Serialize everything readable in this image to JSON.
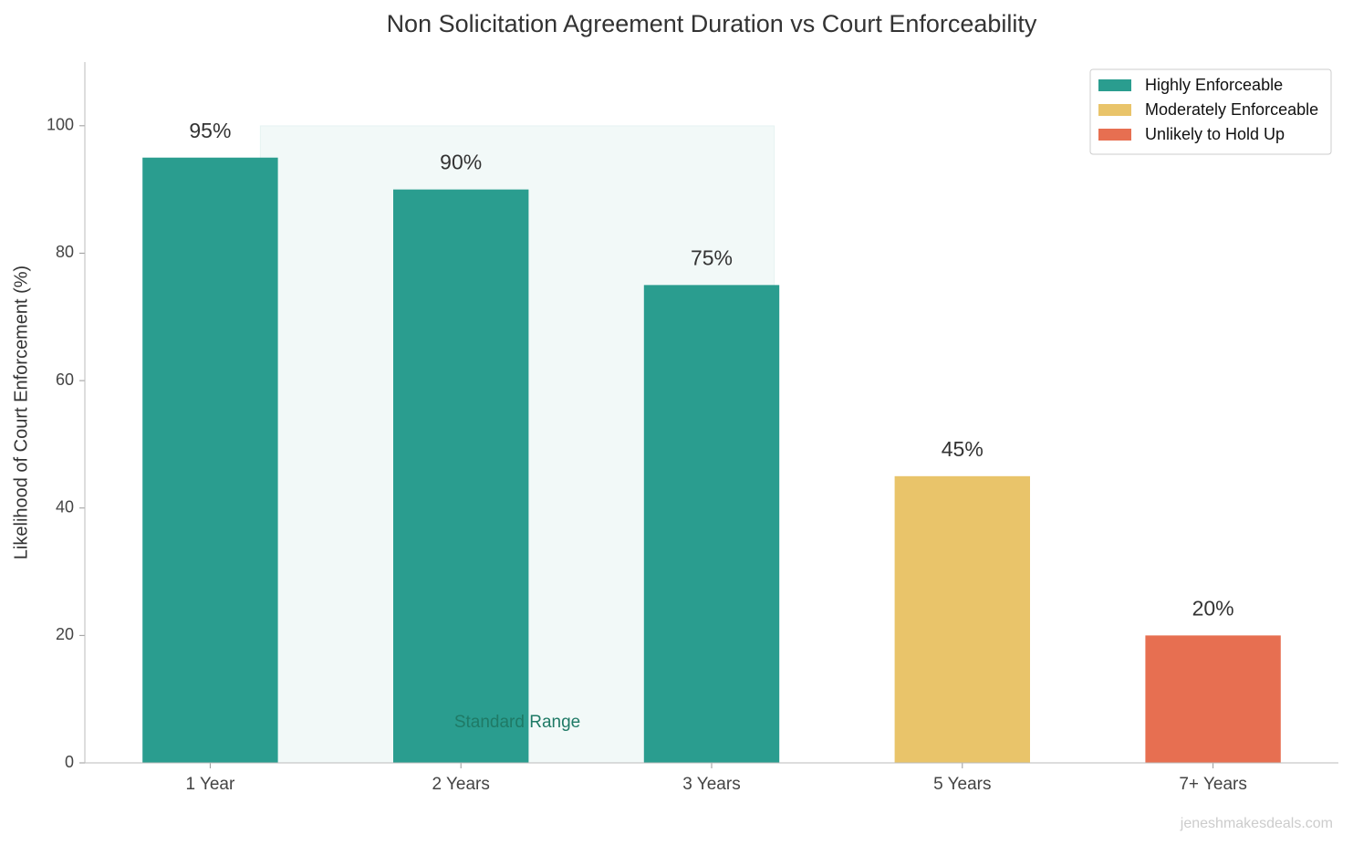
{
  "chart_data": {
    "type": "bar",
    "title": "Non Solicitation Agreement Duration vs Court Enforceability",
    "y_label": "Likelihood of Court Enforcement (%)",
    "categories": [
      "1 Year",
      "2 Years",
      "3 Years",
      "5 Years",
      "7+ Years"
    ],
    "values": [
      95,
      90,
      75,
      45,
      20
    ],
    "value_labels": [
      "95%",
      "90%",
      "75%",
      "45%",
      "20%"
    ],
    "colors": [
      "#2a9d8f",
      "#2a9d8f",
      "#2a9d8f",
      "#e9c46a",
      "#e76f51"
    ],
    "legend": [
      {
        "name": "Highly Enforceable",
        "color": "#2a9d8f"
      },
      {
        "name": "Moderately Enforceable",
        "color": "#e9c46a"
      },
      {
        "name": "Unlikely to Hold Up",
        "color": "#e76f51"
      }
    ],
    "legend_position": "upper right",
    "shaded_region": {
      "label": "Standard Range",
      "x": [
        0.2,
        2.25
      ],
      "y": [
        0,
        100
      ],
      "color": "#2a9d8f"
    },
    "ylim": [
      0,
      110
    ],
    "yticks": [
      0,
      20,
      40,
      60,
      80,
      100
    ],
    "grid": false,
    "watermark": "jeneshmakesdeals.com"
  }
}
